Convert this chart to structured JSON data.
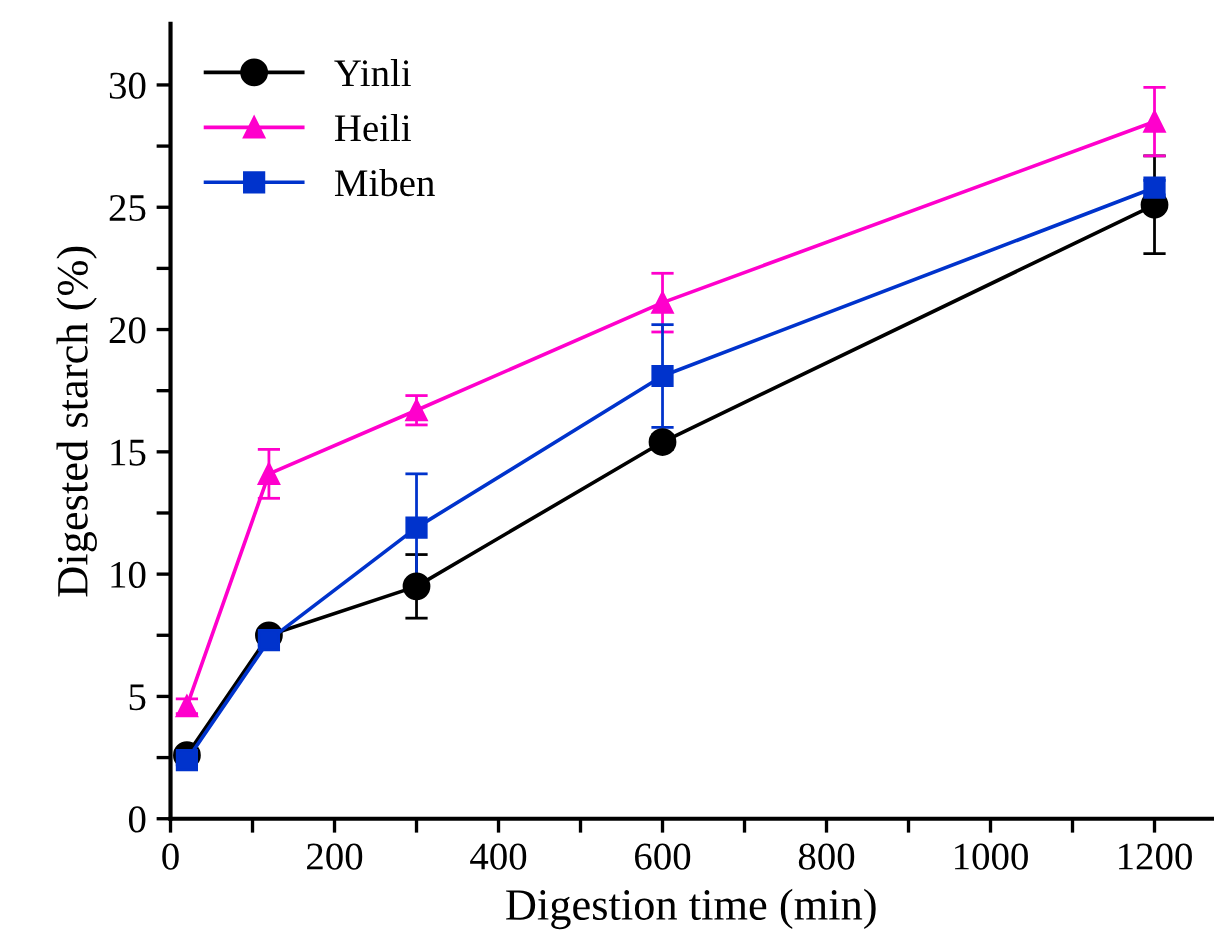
{
  "chart_data": {
    "type": "line",
    "xlabel": "Digestion time (min)",
    "ylabel": "Digested starch (%)",
    "x": [
      20,
      120,
      300,
      600,
      1200
    ],
    "series": [
      {
        "name": "Yinli",
        "color": "#000000",
        "marker": "circle",
        "values": [
          2.6,
          7.5,
          9.5,
          15.4,
          25.1
        ],
        "errors": [
          0.2,
          0.2,
          1.3,
          0.3,
          2.0
        ]
      },
      {
        "name": "Heili",
        "color": "#ff00cc",
        "marker": "triangle",
        "values": [
          4.6,
          14.1,
          16.7,
          21.1,
          28.5
        ],
        "errors": [
          0.3,
          1.0,
          0.6,
          1.2,
          1.4
        ]
      },
      {
        "name": "Miben",
        "color": "#0033cc",
        "marker": "square",
        "values": [
          2.4,
          7.3,
          11.9,
          18.1,
          25.8
        ],
        "errors": [
          0.2,
          0.2,
          2.2,
          2.1,
          0.3
        ]
      }
    ],
    "xlim": [
      0,
      1270
    ],
    "ylim": [
      0,
      32.5
    ],
    "xticks": [
      0,
      {
        "value": 100,
        "label": null
      },
      200,
      {
        "value": 300,
        "label": null
      },
      400,
      {
        "value": 500,
        "label": null
      },
      600,
      {
        "value": 700,
        "label": null
      },
      800,
      {
        "value": 900,
        "label": null
      },
      1000,
      {
        "value": 1100,
        "label": null
      },
      1200
    ],
    "yticks": [
      0,
      {
        "value": 2.5,
        "label": null
      },
      5,
      {
        "value": 7.5,
        "label": null
      },
      10,
      {
        "value": 12.5,
        "label": null
      },
      15,
      {
        "value": 17.5,
        "label": null
      },
      20,
      {
        "value": 22.5,
        "label": null
      },
      25,
      {
        "value": 27.5,
        "label": null
      },
      30
    ],
    "grid": false,
    "legend": "top left",
    "line_style": "solid"
  }
}
